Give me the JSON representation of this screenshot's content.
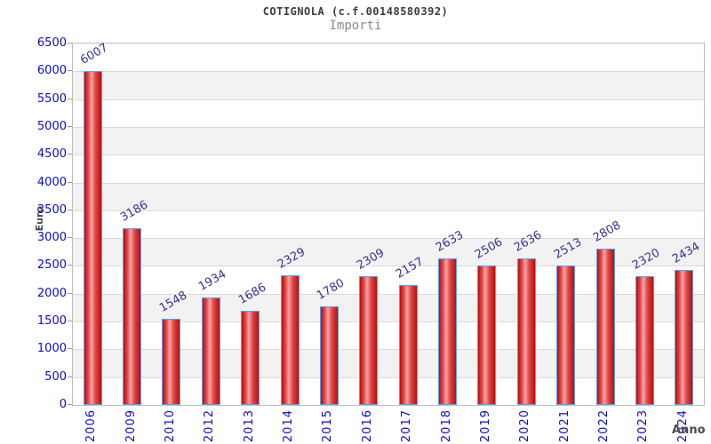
{
  "header": {
    "title": "COTIGNOLA (c.f.00148580392)",
    "subtitle": "Importi"
  },
  "chart_data": {
    "type": "bar",
    "title": "COTIGNOLA (c.f.00148580392)",
    "subtitle": "Importi",
    "xlabel": "Anno",
    "ylabel": "Euro",
    "categories": [
      "2006",
      "2009",
      "2010",
      "2012",
      "2013",
      "2014",
      "2015",
      "2016",
      "2017",
      "2018",
      "2019",
      "2020",
      "2021",
      "2022",
      "2023",
      "2024"
    ],
    "values": [
      6007,
      3186,
      1548,
      1934,
      1686,
      2329,
      1780,
      2309,
      2157,
      2633,
      2506,
      2636,
      2513,
      2808,
      2320,
      2434
    ],
    "ylim": [
      0,
      6500
    ],
    "ytick_step": 500,
    "grid": "horizontal-bands",
    "legend": "none",
    "colors": {
      "bar_fill_edge": "#b90f0f",
      "bar_fill_highlight": "#f7a4a4",
      "bar_border": "#55a2f5",
      "axis_tick_label": "#0a0acc",
      "value_label": "#333399",
      "band_gray": "#f2f2f2",
      "gridline": "#dadada",
      "plot_border": "#bdbdbd",
      "title_color": "#3c3c3c",
      "subtitle_color": "#8a8a8a"
    }
  }
}
